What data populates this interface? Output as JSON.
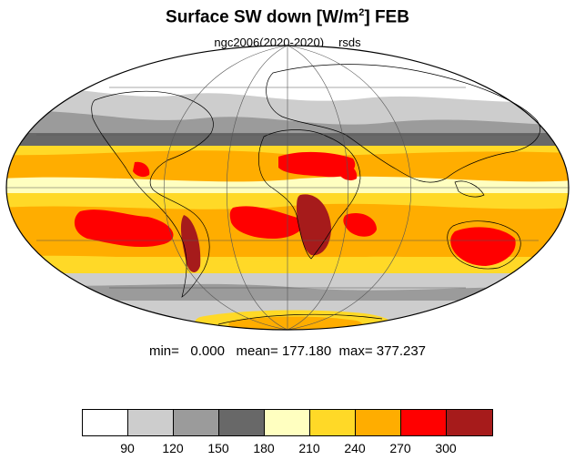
{
  "title": {
    "main": "Surface SW down [W/m",
    "sup": "2",
    "tail": "]  FEB"
  },
  "subtitle": {
    "left": "ngc2006(2020-2020)",
    "right": "rsds"
  },
  "stats": {
    "min_label": "min=",
    "min_value": "0.000",
    "mean_label": "mean=",
    "mean_value": "177.180",
    "max_label": "max=",
    "max_value": "377.237"
  },
  "colorbar": {
    "colors": [
      "#ffffff",
      "#cdcdcd",
      "#9b9b9b",
      "#686868",
      "#ffffc0",
      "#ffd927",
      "#ffad00",
      "#ff0000",
      "#a61b1b"
    ],
    "labels": [
      "90",
      "120",
      "150",
      "180",
      "210",
      "240",
      "270",
      "300"
    ]
  },
  "map": {
    "projection": "mollweide",
    "field_colors": {
      "polar_white": "#ffffff",
      "light_gray": "#cdcdcd",
      "mid_gray": "#9b9b9b",
      "dark_gray": "#686868",
      "pale_yellow": "#ffffc0",
      "yellow": "#ffd927",
      "orange": "#ffad00",
      "red": "#ff0000",
      "dark_red": "#a61b1b"
    }
  }
}
